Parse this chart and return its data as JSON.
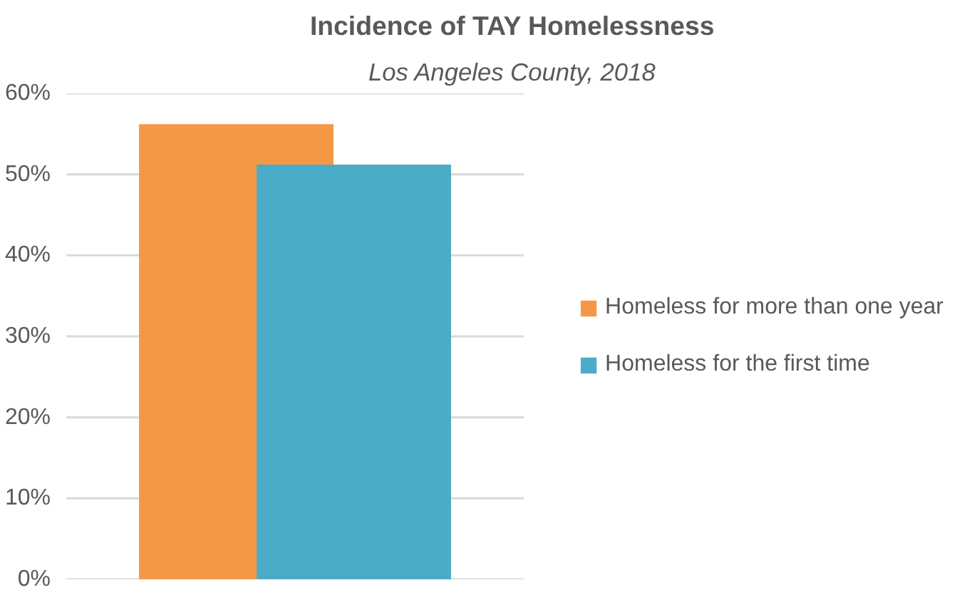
{
  "chart_data": {
    "type": "bar",
    "title": "Incidence of TAY Homelessness",
    "subtitle": "Los Angeles County, 2018",
    "categories": [
      null
    ],
    "series": [
      {
        "name": "Homeless for more than one year",
        "color": "#f59846",
        "values": [
          56.2
        ]
      },
      {
        "name": "Homeless for the first time",
        "color": "#4aacc6",
        "values": [
          51.2
        ]
      }
    ],
    "ylim": [
      0,
      60
    ],
    "yticks": [
      {
        "value": 0,
        "label": "0%"
      },
      {
        "value": 10,
        "label": "10%"
      },
      {
        "value": 20,
        "label": "20%"
      },
      {
        "value": 30,
        "label": "30%"
      },
      {
        "value": 40,
        "label": "40%"
      },
      {
        "value": 50,
        "label": "50%"
      },
      {
        "value": 60,
        "label": "60%"
      }
    ],
    "grid": "y",
    "legend": "right"
  }
}
